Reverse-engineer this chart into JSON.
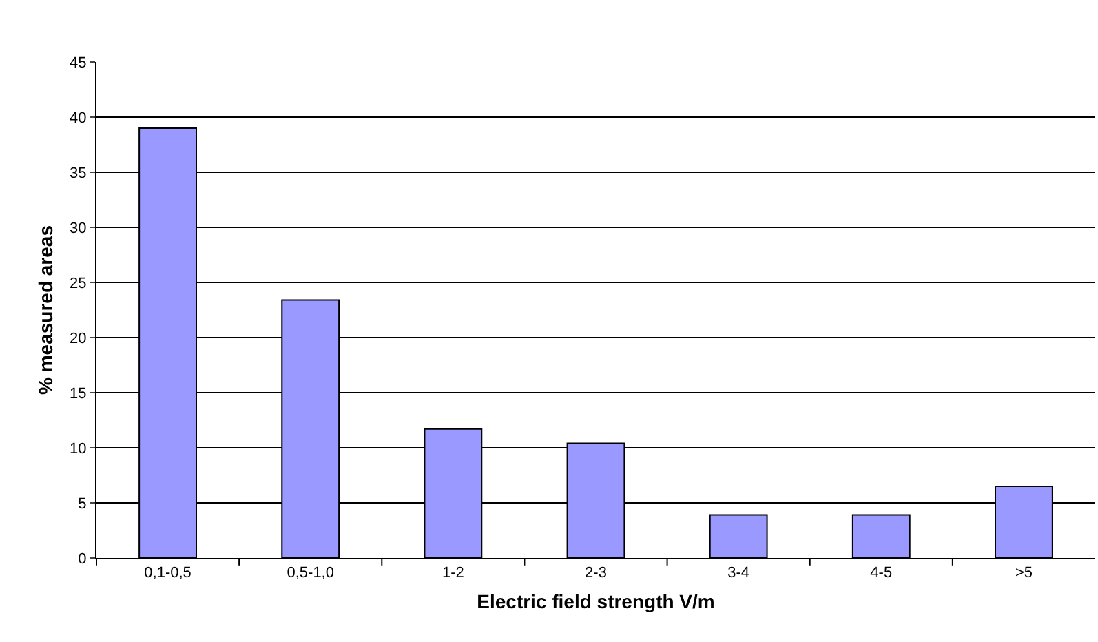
{
  "chart_data": {
    "type": "bar",
    "xlabel": "Electric field strength V/m",
    "ylabel": "% measured areas",
    "categories": [
      "0,1-0,5",
      "0,5-1,0",
      "1-2",
      "2-3",
      "3-4",
      "4-5",
      ">5"
    ],
    "values": [
      39,
      23.4,
      11.7,
      10.4,
      3.9,
      3.9,
      6.5
    ],
    "color": "#9999ff",
    "ylim": [
      0,
      45
    ],
    "yticks": [
      0,
      5,
      10,
      15,
      20,
      25,
      30,
      35,
      40,
      45
    ],
    "grid": "y"
  }
}
